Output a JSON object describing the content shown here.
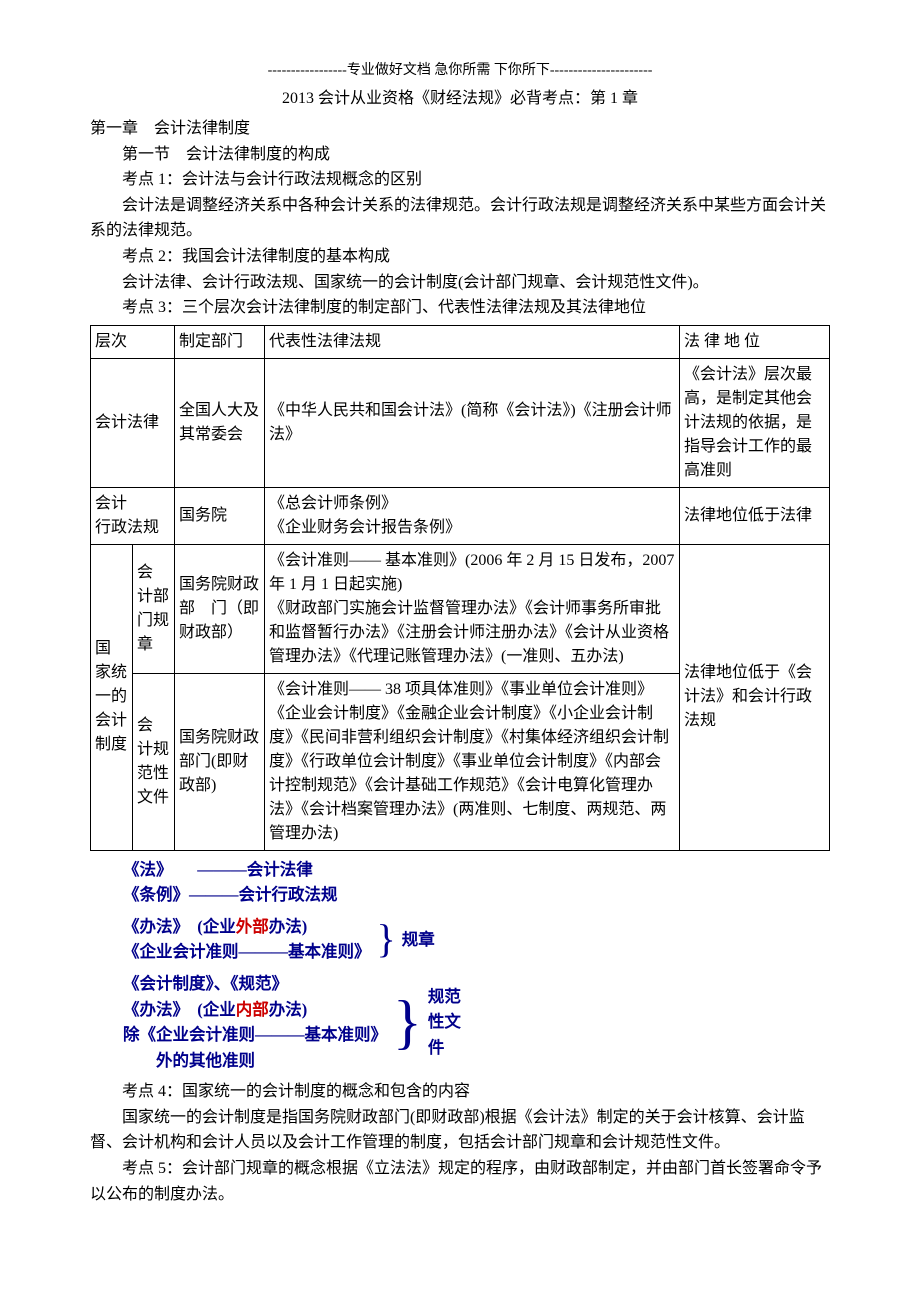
{
  "header_line": "-----------------专业做好文档  急你所需  下你所下----------------------",
  "title": "2013 会计从业资格《财经法规》必背考点：第 1 章",
  "chapter": "第一章　会计法律制度",
  "section1": "第一节　会计法律制度的构成",
  "kp1_title": "考点 1：会计法与会计行政法规概念的区别",
  "kp1_body": "会计法是调整经济关系中各种会计关系的法律规范。会计行政法规是调整经济关系中某些方面会计关系的法律规范。",
  "kp2_title": "考点 2：我国会计法律制度的基本构成",
  "kp2_body": "会计法律、会计行政法规、国家统一的会计制度(会计部门规章、会计规范性文件)。",
  "kp3_title": "考点 3：三个层次会计法律制度的制定部门、代表性法律法规及其法律地位",
  "table": {
    "header": [
      "层次",
      "制定部门",
      "代表性法律法规",
      "法 律 地 位"
    ],
    "rows": [
      {
        "level": "会计法律",
        "dept": "全国人大及其常委会",
        "laws": "《中华人民共和国会计法》(简称《会计法》)《注册会计师法》",
        "status": "《会计法》层次最高，是制定其他会计法规的依据，是指导会计工作的最高准则"
      },
      {
        "level": "会计\n行政法规",
        "dept": "国务院",
        "laws": "《总会计师条例》\n《企业财务会计报告条例》",
        "status": "法律地位低于法律"
      },
      {
        "level": "国　家统　一的　会计　制度",
        "sub": [
          {
            "sub_level": "会　计部　门规章",
            "dept": "国务院财政　部　门（即财政部）",
            "laws": "《会计准则—— 基本准则》(2006 年 2 月 15 日发布，2007 年 1 月 1 日起实施)\n《财政部门实施会计监督管理办法》《会计师事务所审批和监督暂行办法》《注册会计师注册办法》《会计从业资格管理办法》《代理记账管理办法》(一准则、五办法)"
          },
          {
            "sub_level": "会　计规　范性　文件",
            "dept": "国务院财政部门(即财政部)",
            "laws": "《会计准则—— 38 项具体准则》《事业单位会计准则》《企业会计制度》《金融企业会计制度》《小企业会计制度》《民间非营利组织会计制度》《村集体经济组织会计制度》《行政单位会计制度》《事业单位会计制度》《内部会计控制规范》《会计基础工作规范》《会计电算化管理办法》《会计档案管理办法》(两准则、七制度、两规范、两管理办法)"
          }
        ],
        "status": "法律地位低于《会计法》和会计行政法规"
      }
    ]
  },
  "summary": {
    "line1_left": "《法》　　———",
    "line1_right": "会计法律",
    "line2_left": "《条例》———",
    "line2_right": "会计行政法规",
    "group1_a": "《办法》　(企业",
    "group1_a_red": "外部",
    "group1_a_tail": "办法)",
    "group1_b": "《企业会计准则———基本准则》",
    "group1_label": "规章",
    "group2_a": "《会计制度》、《规范》",
    "group2_b_pre": "《办法》　(企业",
    "group2_b_red": "内部",
    "group2_b_tail": "办法)",
    "group2_c": "除《企业会计准则———基本准则》",
    "group2_d": "　　外的其他准则",
    "group2_label": "规范\n性文\n件"
  },
  "kp4_title": "考点 4：国家统一的会计制度的概念和包含的内容",
  "kp4_body": "国家统一的会计制度是指国务院财政部门(即财政部)根据《会计法》制定的关于会计核算、会计监督、会计机构和会计人员以及会计工作管理的制度，包括会计部门规章和会计规范性文件。",
  "kp5_body": "考点 5：会计部门规章的概念根据《立法法》规定的程序，由财政部制定，并由部门首长签署命令予以公布的制度办法。"
}
